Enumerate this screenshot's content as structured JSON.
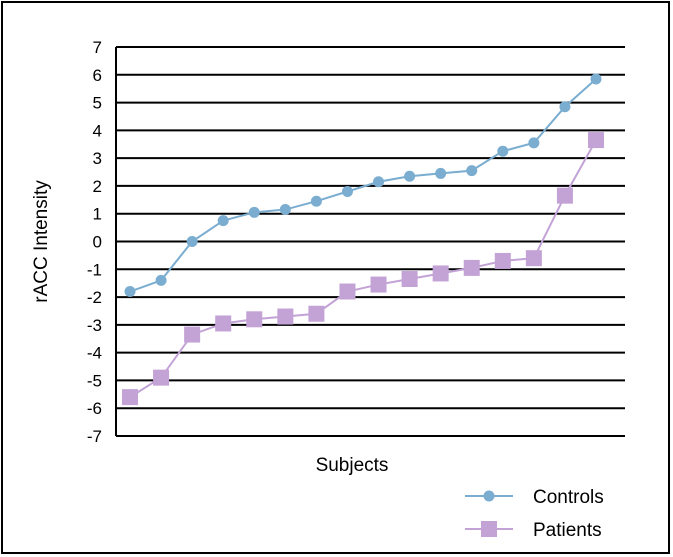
{
  "chart_data": {
    "type": "line",
    "title": "",
    "xlabel": "Subjects",
    "ylabel": "rACC Intensity",
    "ylim": [
      -7,
      7
    ],
    "yticks": [
      7,
      6,
      5,
      4,
      3,
      2,
      1,
      0,
      -1,
      -2,
      -3,
      -4,
      -5,
      -6,
      -7
    ],
    "grid": "horizontal",
    "legend_position": "bottom-right",
    "series": [
      {
        "name": "Controls",
        "color": "#7aadd0",
        "marker": "circle",
        "values": [
          -1.8,
          -1.4,
          0.0,
          0.75,
          1.05,
          1.15,
          1.45,
          1.8,
          2.15,
          2.35,
          2.45,
          2.55,
          3.25,
          3.55,
          4.85,
          5.85
        ]
      },
      {
        "name": "Patients",
        "color": "#c3a3d6",
        "marker": "square",
        "values": [
          -5.6,
          -4.9,
          -3.35,
          -2.95,
          -2.8,
          -2.7,
          -2.6,
          -1.8,
          -1.55,
          -1.35,
          -1.15,
          -0.95,
          -0.7,
          -0.6,
          1.65,
          3.65
        ]
      }
    ]
  }
}
